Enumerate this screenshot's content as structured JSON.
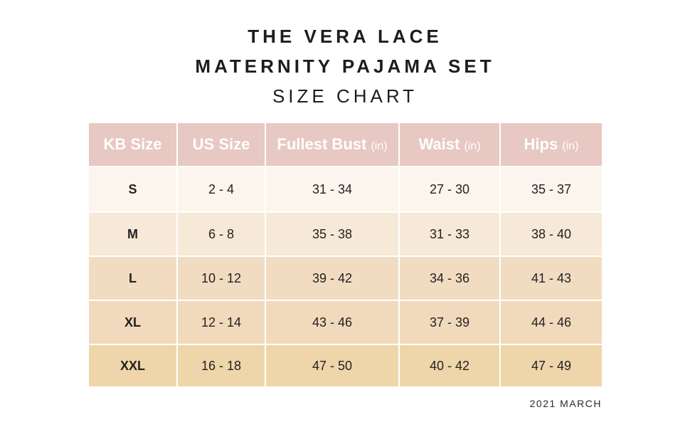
{
  "title": {
    "line1": "THE VERA LACE",
    "line2": "MATERNITY PAJAMA SET",
    "line3": "SIZE CHART"
  },
  "table": {
    "headers": [
      {
        "label": "KB Size",
        "unit": ""
      },
      {
        "label": "US Size",
        "unit": ""
      },
      {
        "label": "Fullest Bust",
        "unit": "(in)"
      },
      {
        "label": "Waist",
        "unit": "(in)"
      },
      {
        "label": "Hips",
        "unit": "(in)"
      }
    ],
    "rows": [
      [
        "S",
        "2 - 4",
        "31 - 34",
        "27 - 30",
        "35 - 37"
      ],
      [
        "M",
        "6 - 8",
        "35 - 38",
        "31 - 33",
        "38 - 40"
      ],
      [
        "L",
        "10 - 12",
        "39 - 42",
        "34 - 36",
        "41 - 43"
      ],
      [
        "XL",
        "12 - 14",
        "43 - 46",
        "37 - 39",
        "44 - 46"
      ],
      [
        "XXL",
        "16 - 18",
        "47 - 50",
        "40 - 42",
        "47 - 49"
      ]
    ]
  },
  "footnote": "2021 MARCH",
  "colors": {
    "header_bg": "#e7c8c2",
    "header_text": "#ffffff",
    "row_bgs": [
      "#fcf5ed",
      "#f7e9d7",
      "#f2dcc1",
      "#f1d9bc",
      "#efd5aa"
    ]
  }
}
